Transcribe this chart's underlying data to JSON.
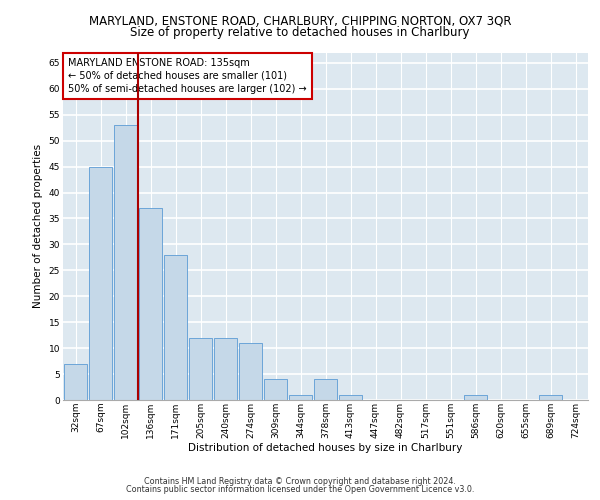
{
  "title": "MARYLAND, ENSTONE ROAD, CHARLBURY, CHIPPING NORTON, OX7 3QR",
  "subtitle": "Size of property relative to detached houses in Charlbury",
  "xlabel": "Distribution of detached houses by size in Charlbury",
  "ylabel": "Number of detached properties",
  "categories": [
    "32sqm",
    "67sqm",
    "102sqm",
    "136sqm",
    "171sqm",
    "205sqm",
    "240sqm",
    "274sqm",
    "309sqm",
    "344sqm",
    "378sqm",
    "413sqm",
    "447sqm",
    "482sqm",
    "517sqm",
    "551sqm",
    "586sqm",
    "620sqm",
    "655sqm",
    "689sqm",
    "724sqm"
  ],
  "values": [
    7,
    45,
    53,
    37,
    28,
    12,
    12,
    11,
    4,
    1,
    4,
    1,
    0,
    0,
    0,
    0,
    1,
    0,
    0,
    1,
    0
  ],
  "bar_color": "#c5d8e8",
  "bar_edge_color": "#5b9bd5",
  "ylim": [
    0,
    67
  ],
  "yticks": [
    0,
    5,
    10,
    15,
    20,
    25,
    30,
    35,
    40,
    45,
    50,
    55,
    60,
    65
  ],
  "red_line_x": 2.5,
  "annotation_text": "MARYLAND ENSTONE ROAD: 135sqm\n← 50% of detached houses are smaller (101)\n50% of semi-detached houses are larger (102) →",
  "annotation_box_color": "#ffffff",
  "annotation_box_edge_color": "#cc0000",
  "footer_line1": "Contains HM Land Registry data © Crown copyright and database right 2024.",
  "footer_line2": "Contains public sector information licensed under the Open Government Licence v3.0.",
  "background_color": "#dde8f0",
  "title_fontsize": 8.5,
  "subtitle_fontsize": 8.5,
  "axis_label_fontsize": 7.5,
  "tick_fontsize": 6.5,
  "footer_fontsize": 5.8
}
